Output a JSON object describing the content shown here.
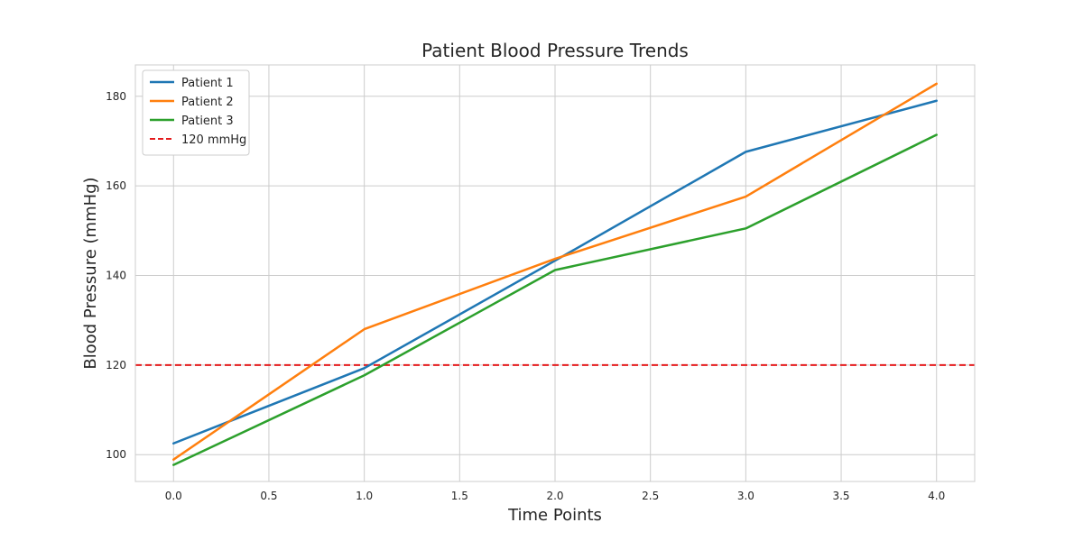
{
  "chart_data": {
    "type": "line",
    "title": "Patient Blood Pressure Trends",
    "xlabel": "Time Points",
    "ylabel": "Blood Pressure (mmHg)",
    "x": [
      0,
      1,
      2,
      3,
      4
    ],
    "xlim": [
      -0.2,
      4.2
    ],
    "ylim": [
      94,
      187
    ],
    "xticks": [
      0.0,
      0.5,
      1.0,
      1.5,
      2.0,
      2.5,
      3.0,
      3.5,
      4.0
    ],
    "xtick_labels": [
      "0.0",
      "0.5",
      "1.0",
      "1.5",
      "2.0",
      "2.5",
      "3.0",
      "3.5",
      "4.0"
    ],
    "yticks": [
      100,
      120,
      140,
      160,
      180
    ],
    "ytick_labels": [
      "100",
      "120",
      "140",
      "160",
      "180"
    ],
    "grid": true,
    "legend_position": "top-left",
    "series": [
      {
        "name": "Patient 1",
        "color": "#1f77b4",
        "values": [
          102.5,
          119.3,
          143.3,
          167.6,
          179.0
        ]
      },
      {
        "name": "Patient 2",
        "color": "#ff7f0e",
        "values": [
          98.9,
          128.0,
          143.7,
          157.6,
          182.8
        ]
      },
      {
        "name": "Patient 3",
        "color": "#2ca02c",
        "values": [
          97.7,
          117.7,
          141.2,
          150.5,
          171.4
        ]
      }
    ],
    "reference_lines": [
      {
        "name": "120 mmHg",
        "value": 120,
        "color": "#e41a1c",
        "style": "dashed"
      }
    ]
  }
}
